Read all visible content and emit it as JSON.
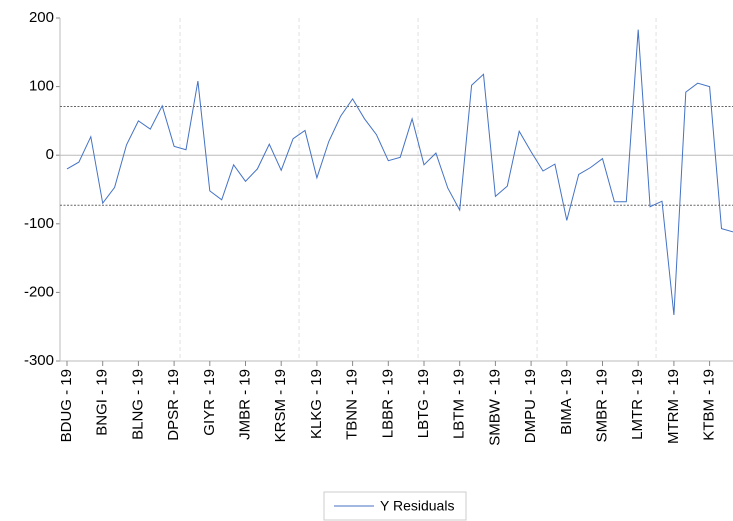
{
  "chart_data": {
    "type": "line",
    "categories": [
      "BDUG - 19",
      null,
      null,
      "BNGI - 19",
      null,
      null,
      "BLNG - 19",
      null,
      null,
      "DPSR - 19",
      null,
      null,
      "GIYR - 19",
      null,
      null,
      "JMBR - 19",
      null,
      null,
      "KRSM - 19",
      null,
      null,
      "KLKG - 19",
      null,
      null,
      "TBNN - 19",
      null,
      null,
      "LBBR - 19",
      null,
      null,
      "LBTG - 19",
      null,
      null,
      "LBTM - 19",
      null,
      null,
      "SMBW - 19",
      null,
      null,
      "DMPU - 19",
      null,
      null,
      "BIMA - 19",
      null,
      null,
      "SMBR - 19",
      null,
      null,
      "LMTR - 19",
      null,
      null,
      "MTRM - 19",
      null,
      null,
      "KTBM - 19",
      null,
      null
    ],
    "series": [
      {
        "name": "Y Residuals",
        "color": "#4472c4",
        "values": [
          -20,
          -10,
          27,
          -70,
          -47,
          15,
          50,
          38,
          72,
          13,
          8,
          108,
          -52,
          -65,
          -14,
          -38,
          -20,
          16,
          -22,
          24,
          36,
          -33,
          20,
          57,
          82,
          53,
          30,
          -8,
          -3,
          53,
          -14,
          3,
          -48,
          -80,
          102,
          118,
          -60,
          -45,
          35,
          5,
          -23,
          -13,
          -95,
          -28,
          -18,
          -5,
          -68,
          -68,
          183,
          -75,
          -67,
          -233,
          92,
          105,
          100,
          -107,
          -112
        ]
      }
    ],
    "reference_lines": [
      71,
      -73
    ],
    "ylim": [
      -300,
      200
    ],
    "yticks": [
      -300,
      -200,
      -100,
      0,
      100,
      200
    ],
    "legend": "bottom"
  }
}
